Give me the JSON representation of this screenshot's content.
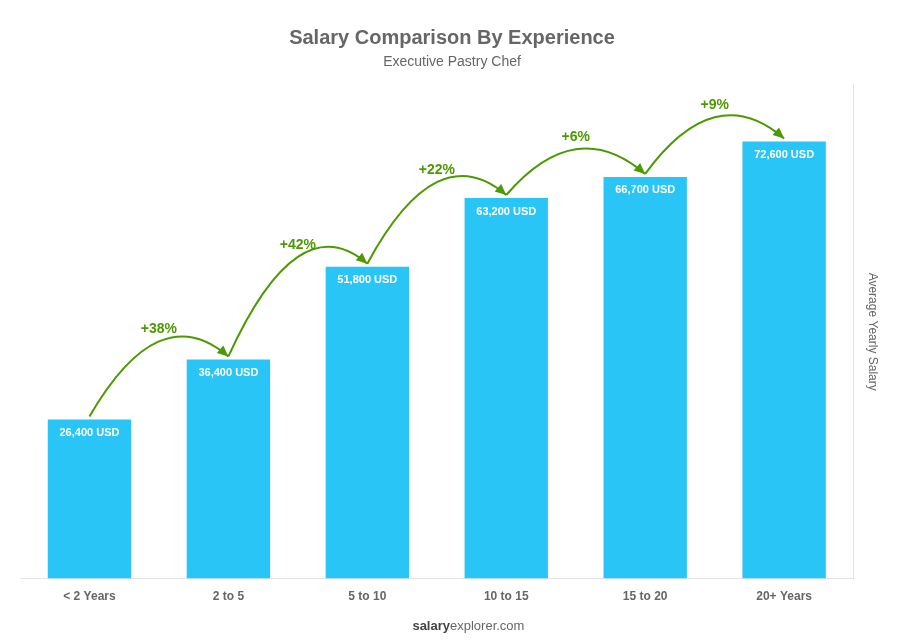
{
  "chart_data": {
    "type": "bar",
    "title": "Salary Comparison By Experience",
    "subtitle": "Executive Pastry Chef",
    "categories": [
      "< 2 Years",
      "2 to 5",
      "5 to 10",
      "10 to 15",
      "15 to 20",
      "20+ Years"
    ],
    "values": [
      26400,
      36400,
      51800,
      63200,
      66700,
      72600
    ],
    "value_labels": [
      "26,400 USD",
      "36,400 USD",
      "51,800 USD",
      "63,200 USD",
      "66,700 USD",
      "72,600 USD"
    ],
    "data_labels": true,
    "color": "#29c5f6",
    "ylabel": "Average Yearly Salary",
    "ylim": [
      0,
      82000
    ],
    "tick_labels": "x",
    "grid": false,
    "annotations": [
      "+38%",
      "+42%",
      "+22%",
      "+6%",
      "+9%"
    ],
    "footer": [
      "salary",
      "explorer.com"
    ]
  }
}
